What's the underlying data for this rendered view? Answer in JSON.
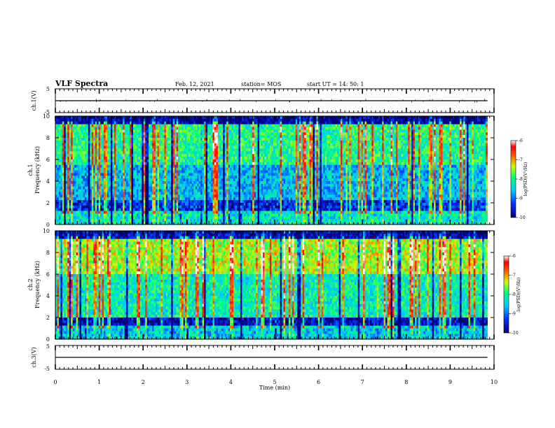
{
  "header": {
    "title": "VLF Spectra",
    "date": "Feb. 12, 2021",
    "station": "station= MOS",
    "start": "start  UT =   14: 50: 1"
  },
  "chart_data": [
    {
      "type": "line",
      "name": "ch1-waveform",
      "ylabel": "ch.1(V)",
      "ylim": [
        -5,
        5
      ],
      "yticks": [
        "5",
        "-5"
      ],
      "x": [
        0,
        9.85
      ],
      "y": [
        0,
        0
      ]
    },
    {
      "type": "heatmap",
      "name": "ch1-spectrogram",
      "ylabel": "ch.1\nFrequency (kHz)",
      "ylabel_lines": [
        "ch.1",
        "Frequency (kHz)"
      ],
      "ylim": [
        0,
        10
      ],
      "yticks": [
        "0",
        "2",
        "4",
        "6",
        "8",
        "10"
      ],
      "xlim": [
        0,
        10
      ],
      "colorbar": {
        "label": "log(PSD)(V²/Hz)",
        "range": [
          -10,
          -6
        ],
        "ticks": [
          "-6",
          "-7",
          "-8",
          "-9",
          "-10"
        ],
        "colors": [
          "#00007a",
          "#0030ff",
          "#00c8ff",
          "#00ff80",
          "#c8ff00",
          "#ff6000",
          "#ff0000",
          "#ffffff"
        ]
      }
    },
    {
      "type": "heatmap",
      "name": "ch2-spectrogram",
      "ylabel": "ch.2\nFrequency (kHz)",
      "ylabel_lines": [
        "ch.2",
        "Frequency (kHz)"
      ],
      "ylim": [
        0,
        10
      ],
      "yticks": [
        "0",
        "2",
        "4",
        "6",
        "8",
        "10"
      ],
      "xlim": [
        0,
        10
      ],
      "colorbar": {
        "label": "log(PSD)(V²/Hz)",
        "range": [
          -10,
          -6
        ],
        "ticks": [
          "-6",
          "-7",
          "-8",
          "-9",
          "-10"
        ],
        "colors": [
          "#00007a",
          "#0030ff",
          "#00c8ff",
          "#00ff80",
          "#c8ff00",
          "#ff6000",
          "#ff0000",
          "#ffffff"
        ]
      }
    },
    {
      "type": "line",
      "name": "ch3-waveform",
      "ylabel": "ch.3(V)",
      "ylim": [
        -5,
        5
      ],
      "yticks": [
        "5",
        "-5"
      ],
      "x": [
        0,
        9.85
      ],
      "y": [
        0,
        0
      ]
    }
  ],
  "xaxis": {
    "label": "Time (min)",
    "ticks": [
      "0",
      "1",
      "2",
      "3",
      "4",
      "5",
      "6",
      "7",
      "8",
      "9",
      "10"
    ],
    "range": [
      0,
      10
    ]
  }
}
